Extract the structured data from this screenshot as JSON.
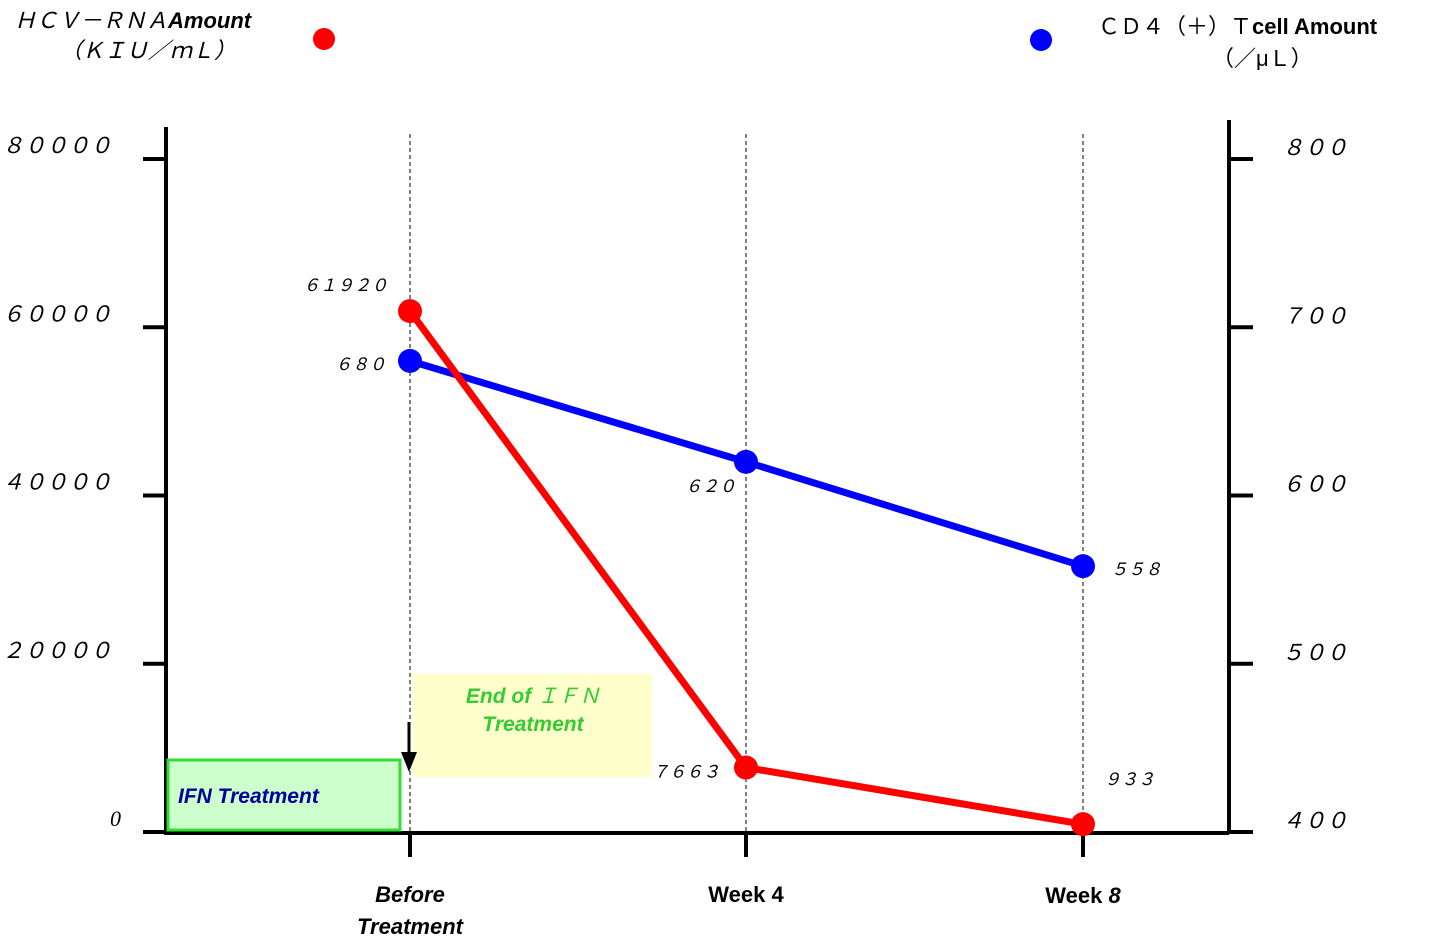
{
  "chart_data": {
    "type": "line",
    "categories": [
      "Before Treatment",
      "Week 4",
      "Week 8"
    ],
    "category_labels": [
      {
        "line1": "Before",
        "line2": "Treatment"
      },
      {
        "line1": "Week 4",
        "line2": ""
      },
      {
        "line1": "Week ",
        "line2": "",
        "suffix": "8"
      }
    ],
    "left_axis": {
      "title_line1_a": "ＨＣＶ－ＲＮＡ",
      "title_line1_b": "Amount",
      "title_line2": "（ＫＩＵ／ｍＬ）",
      "ylim": [
        0,
        80000
      ],
      "ticks": [
        0,
        20000,
        40000,
        60000,
        80000
      ],
      "tick_labels": [
        "0",
        "２００００",
        "４００００",
        "６００００",
        "８００００"
      ]
    },
    "right_axis": {
      "title_line1_a": "ＣＤ４（＋）Ｔ",
      "title_line1_b": "cell Amount",
      "title_line2": "（／μＬ）",
      "ylim": [
        400,
        800
      ],
      "ticks": [
        400,
        500,
        600,
        700,
        800
      ],
      "tick_labels": [
        "４００",
        "５００",
        "６００",
        "７００",
        "８００"
      ]
    },
    "series": [
      {
        "axis": "left",
        "color": "#ff0000",
        "values": [
          61920,
          7663,
          933
        ],
        "data_labels": [
          "６１９２０",
          "７６６３",
          "９３３"
        ]
      },
      {
        "axis": "right",
        "color": "#0000ff",
        "values": [
          680,
          620,
          558
        ],
        "data_labels": [
          "６８０",
          "６２０",
          "５５８"
        ]
      }
    ],
    "annotations": {
      "ifn_box": {
        "label": "IFN Treatment",
        "fill": "#ccffcc",
        "border": "#33dd33",
        "text_color": "#000099"
      },
      "end_box": {
        "line1_a": "End of ",
        "line1_b": "ＩＦＮ",
        "line2": "Treatment",
        "fill": "#ffffcc",
        "text_color": "#33cc33"
      }
    },
    "grid": false
  }
}
